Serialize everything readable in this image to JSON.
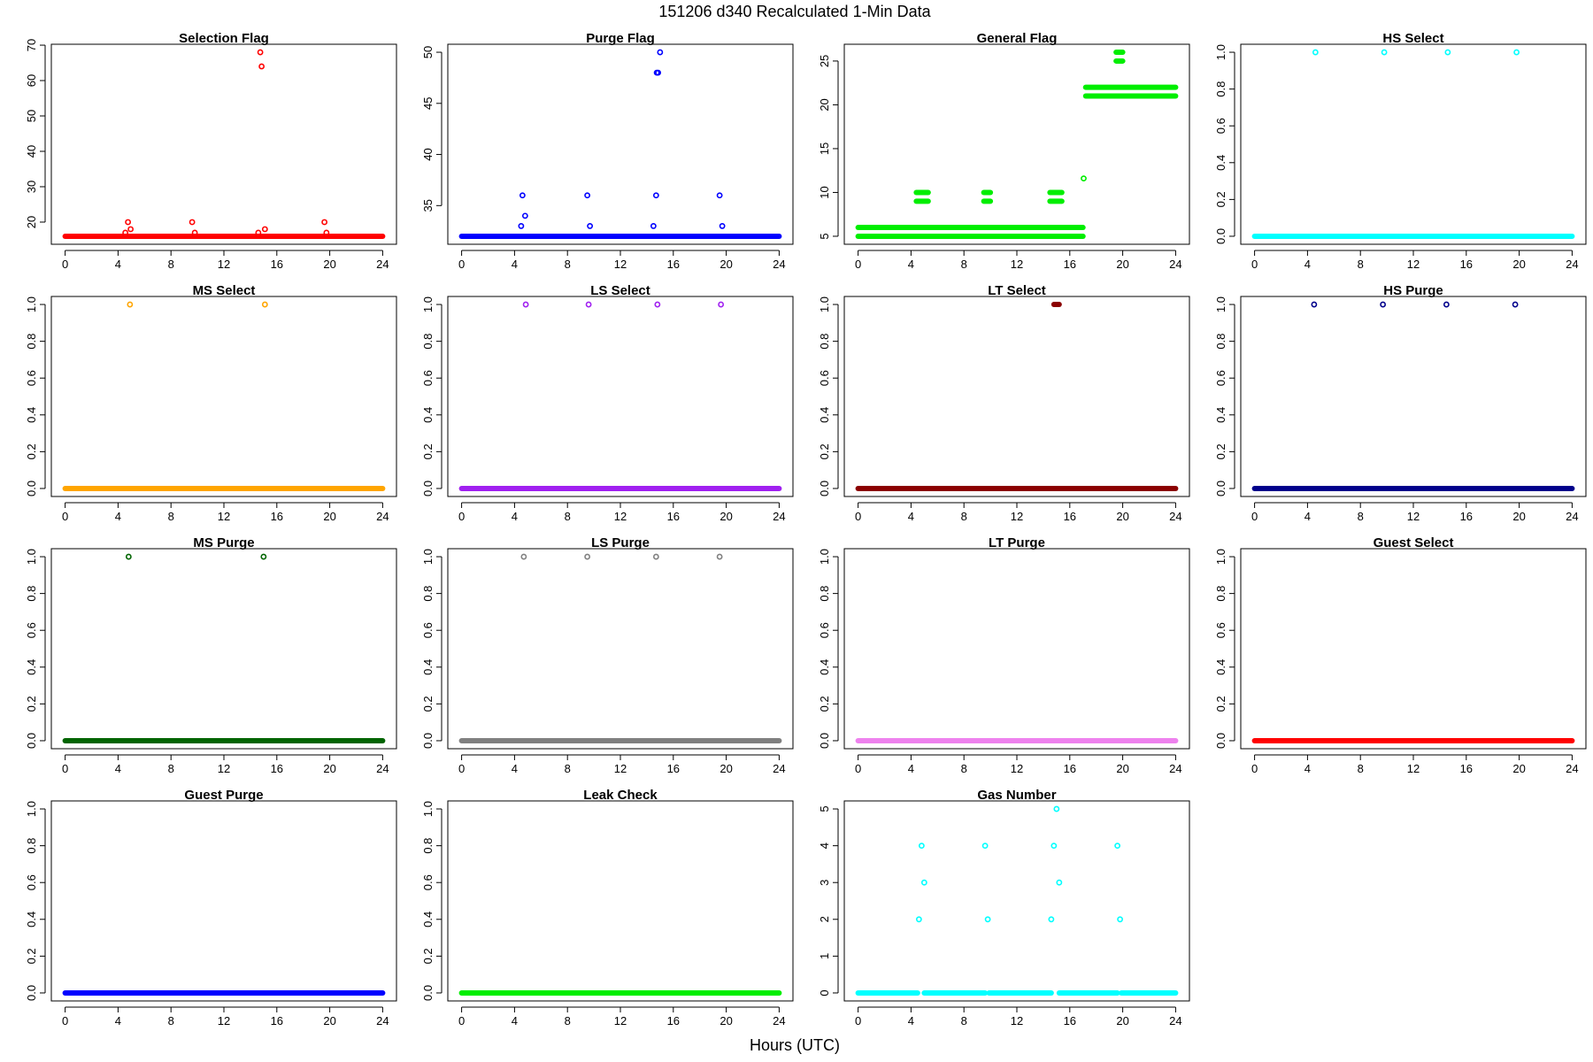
{
  "figure": {
    "title": "151206   d340   Recalculated 1-Min Data",
    "xlabel": "Hours (UTC)"
  },
  "chart_data": [
    {
      "type": "scatter",
      "title": "Selection Flag",
      "color": "#ff0000",
      "xlim": [
        0,
        24
      ],
      "ylim": [
        16,
        68
      ],
      "xticks": [
        0,
        4,
        8,
        12,
        16,
        20,
        24
      ],
      "yticks": [
        20,
        30,
        40,
        50,
        60,
        70
      ],
      "runs": [
        {
          "y": 16,
          "x0": 0,
          "x1": 24
        }
      ],
      "points": [
        [
          4.55,
          17
        ],
        [
          4.75,
          20
        ],
        [
          4.95,
          18
        ],
        [
          9.6,
          20
        ],
        [
          9.8,
          17
        ],
        [
          14.6,
          17
        ],
        [
          14.75,
          68
        ],
        [
          14.85,
          64
        ],
        [
          15.1,
          18
        ],
        [
          19.6,
          20
        ],
        [
          19.75,
          17
        ]
      ]
    },
    {
      "type": "scatter",
      "title": "Purge Flag",
      "color": "#0000ff",
      "xlim": [
        0,
        24
      ],
      "ylim": [
        32,
        50
      ],
      "xticks": [
        0,
        4,
        8,
        12,
        16,
        20,
        24
      ],
      "yticks": [
        35,
        40,
        45,
        50
      ],
      "runs": [
        {
          "y": 32,
          "x0": 0,
          "x1": 24
        }
      ],
      "points": [
        [
          4.5,
          33
        ],
        [
          4.6,
          36
        ],
        [
          4.8,
          34
        ],
        [
          9.5,
          36
        ],
        [
          9.7,
          33
        ],
        [
          14.5,
          33
        ],
        [
          14.7,
          36
        ],
        [
          14.75,
          48
        ],
        [
          14.85,
          48
        ],
        [
          15.0,
          50
        ],
        [
          19.5,
          36
        ],
        [
          19.7,
          33
        ]
      ]
    },
    {
      "type": "scatter",
      "title": "General Flag",
      "color": "#00ee00",
      "xlim": [
        0,
        24
      ],
      "ylim": [
        5,
        26
      ],
      "xticks": [
        0,
        4,
        8,
        12,
        16,
        20,
        24
      ],
      "yticks": [
        5,
        10,
        15,
        20,
        25
      ],
      "runs": [
        {
          "y": 5,
          "x0": 0,
          "x1": 17
        },
        {
          "y": 6,
          "x0": 0,
          "x1": 17
        },
        {
          "y": 9,
          "x0": 4.4,
          "x1": 5.3
        },
        {
          "y": 10,
          "x0": 4.4,
          "x1": 5.3
        },
        {
          "y": 9,
          "x0": 9.5,
          "x1": 10.0
        },
        {
          "y": 10,
          "x0": 9.5,
          "x1": 10.0
        },
        {
          "y": 9,
          "x0": 14.5,
          "x1": 15.4
        },
        {
          "y": 10,
          "x0": 14.5,
          "x1": 15.4
        },
        {
          "y": 21,
          "x0": 17.2,
          "x1": 24
        },
        {
          "y": 22,
          "x0": 17.2,
          "x1": 24
        },
        {
          "y": 25,
          "x0": 19.5,
          "x1": 20.0
        },
        {
          "y": 26,
          "x0": 19.5,
          "x1": 20.0
        }
      ],
      "points": [
        [
          17.05,
          11.6
        ]
      ]
    },
    {
      "type": "scatter",
      "title": "HS Select",
      "color": "#00ffff",
      "xlim": [
        0,
        24
      ],
      "ylim": [
        0,
        1
      ],
      "xticks": [
        0,
        4,
        8,
        12,
        16,
        20,
        24
      ],
      "yticks": [
        0.0,
        0.2,
        0.4,
        0.6,
        0.8,
        1.0
      ],
      "runs": [
        {
          "y": 0,
          "x0": 0,
          "x1": 24
        }
      ],
      "points": [
        [
          4.6,
          1
        ],
        [
          9.8,
          1
        ],
        [
          14.6,
          1
        ],
        [
          19.8,
          1
        ]
      ]
    },
    {
      "type": "scatter",
      "title": "MS Select",
      "color": "#ffa500",
      "xlim": [
        0,
        24
      ],
      "ylim": [
        0,
        1
      ],
      "xticks": [
        0,
        4,
        8,
        12,
        16,
        20,
        24
      ],
      "yticks": [
        0.0,
        0.2,
        0.4,
        0.6,
        0.8,
        1.0
      ],
      "runs": [
        {
          "y": 0,
          "x0": 0,
          "x1": 24
        }
      ],
      "points": [
        [
          4.9,
          1
        ],
        [
          15.1,
          1
        ]
      ]
    },
    {
      "type": "scatter",
      "title": "LS Select",
      "color": "#a020f0",
      "xlim": [
        0,
        24
      ],
      "ylim": [
        0,
        1
      ],
      "xticks": [
        0,
        4,
        8,
        12,
        16,
        20,
        24
      ],
      "yticks": [
        0.0,
        0.2,
        0.4,
        0.6,
        0.8,
        1.0
      ],
      "runs": [
        {
          "y": 0,
          "x0": 0,
          "x1": 24
        }
      ],
      "points": [
        [
          4.85,
          1
        ],
        [
          9.6,
          1
        ],
        [
          14.8,
          1
        ],
        [
          19.6,
          1
        ]
      ]
    },
    {
      "type": "scatter",
      "title": "LT Select",
      "color": "#8b0000",
      "xlim": [
        0,
        24
      ],
      "ylim": [
        0,
        1
      ],
      "xticks": [
        0,
        4,
        8,
        12,
        16,
        20,
        24
      ],
      "yticks": [
        0.0,
        0.2,
        0.4,
        0.6,
        0.8,
        1.0
      ],
      "runs": [
        {
          "y": 0,
          "x0": 0,
          "x1": 24
        },
        {
          "y": 1,
          "x0": 14.8,
          "x1": 15.2
        }
      ],
      "points": []
    },
    {
      "type": "scatter",
      "title": "HS Purge",
      "color": "#00008b",
      "xlim": [
        0,
        24
      ],
      "ylim": [
        0,
        1
      ],
      "xticks": [
        0,
        4,
        8,
        12,
        16,
        20,
        24
      ],
      "yticks": [
        0.0,
        0.2,
        0.4,
        0.6,
        0.8,
        1.0
      ],
      "runs": [
        {
          "y": 0,
          "x0": 0,
          "x1": 24
        }
      ],
      "points": [
        [
          4.5,
          1
        ],
        [
          9.7,
          1
        ],
        [
          14.5,
          1
        ],
        [
          19.7,
          1
        ]
      ]
    },
    {
      "type": "scatter",
      "title": "MS Purge",
      "color": "#006400",
      "xlim": [
        0,
        24
      ],
      "ylim": [
        0,
        1
      ],
      "xticks": [
        0,
        4,
        8,
        12,
        16,
        20,
        24
      ],
      "yticks": [
        0.0,
        0.2,
        0.4,
        0.6,
        0.8,
        1.0
      ],
      "runs": [
        {
          "y": 0,
          "x0": 0,
          "x1": 24
        }
      ],
      "points": [
        [
          4.8,
          1
        ],
        [
          15.0,
          1
        ]
      ]
    },
    {
      "type": "scatter",
      "title": "LS Purge",
      "color": "#808080",
      "xlim": [
        0,
        24
      ],
      "ylim": [
        0,
        1
      ],
      "xticks": [
        0,
        4,
        8,
        12,
        16,
        20,
        24
      ],
      "yticks": [
        0.0,
        0.2,
        0.4,
        0.6,
        0.8,
        1.0
      ],
      "runs": [
        {
          "y": 0,
          "x0": 0,
          "x1": 24
        }
      ],
      "points": [
        [
          4.7,
          1
        ],
        [
          9.5,
          1
        ],
        [
          14.7,
          1
        ],
        [
          19.5,
          1
        ]
      ]
    },
    {
      "type": "scatter",
      "title": "LT Purge",
      "color": "#ee82ee",
      "xlim": [
        0,
        24
      ],
      "ylim": [
        0,
        1
      ],
      "xticks": [
        0,
        4,
        8,
        12,
        16,
        20,
        24
      ],
      "yticks": [
        0.0,
        0.2,
        0.4,
        0.6,
        0.8,
        1.0
      ],
      "runs": [
        {
          "y": 0,
          "x0": 0,
          "x1": 24
        }
      ],
      "points": []
    },
    {
      "type": "scatter",
      "title": "Guest Select",
      "color": "#ff0000",
      "xlim": [
        0,
        24
      ],
      "ylim": [
        0,
        1
      ],
      "xticks": [
        0,
        4,
        8,
        12,
        16,
        20,
        24
      ],
      "yticks": [
        0.0,
        0.2,
        0.4,
        0.6,
        0.8,
        1.0
      ],
      "runs": [
        {
          "y": 0,
          "x0": 0,
          "x1": 24
        }
      ],
      "points": []
    },
    {
      "type": "scatter",
      "title": "Guest Purge",
      "color": "#0000ff",
      "xlim": [
        0,
        24
      ],
      "ylim": [
        0,
        1
      ],
      "xticks": [
        0,
        4,
        8,
        12,
        16,
        20,
        24
      ],
      "yticks": [
        0.0,
        0.2,
        0.4,
        0.6,
        0.8,
        1.0
      ],
      "runs": [
        {
          "y": 0,
          "x0": 0,
          "x1": 24
        }
      ],
      "points": []
    },
    {
      "type": "scatter",
      "title": "Leak Check",
      "color": "#00ee00",
      "xlim": [
        0,
        24
      ],
      "ylim": [
        0,
        1
      ],
      "xticks": [
        0,
        4,
        8,
        12,
        16,
        20,
        24
      ],
      "yticks": [
        0.0,
        0.2,
        0.4,
        0.6,
        0.8,
        1.0
      ],
      "runs": [
        {
          "y": 0,
          "x0": 0,
          "x1": 24
        }
      ],
      "points": []
    },
    {
      "type": "scatter",
      "title": "Gas Number",
      "color": "#00ffff",
      "xlim": [
        0,
        24
      ],
      "ylim": [
        0,
        5
      ],
      "xticks": [
        0,
        4,
        8,
        12,
        16,
        20,
        24
      ],
      "yticks": [
        0,
        1,
        2,
        3,
        4,
        5
      ],
      "runs": [
        {
          "y": 0,
          "x0": 0,
          "x1": 4.5
        },
        {
          "y": 0,
          "x0": 5.0,
          "x1": 9.6
        },
        {
          "y": 0,
          "x0": 9.9,
          "x1": 14.6
        },
        {
          "y": 0,
          "x0": 15.2,
          "x1": 19.6
        },
        {
          "y": 0,
          "x0": 19.9,
          "x1": 24
        }
      ],
      "points": [
        [
          4.6,
          2
        ],
        [
          4.8,
          4
        ],
        [
          5.0,
          3
        ],
        [
          9.6,
          4
        ],
        [
          9.8,
          2
        ],
        [
          14.6,
          2
        ],
        [
          14.8,
          4
        ],
        [
          15.0,
          5
        ],
        [
          15.2,
          3
        ],
        [
          19.6,
          4
        ],
        [
          19.8,
          2
        ]
      ]
    }
  ]
}
